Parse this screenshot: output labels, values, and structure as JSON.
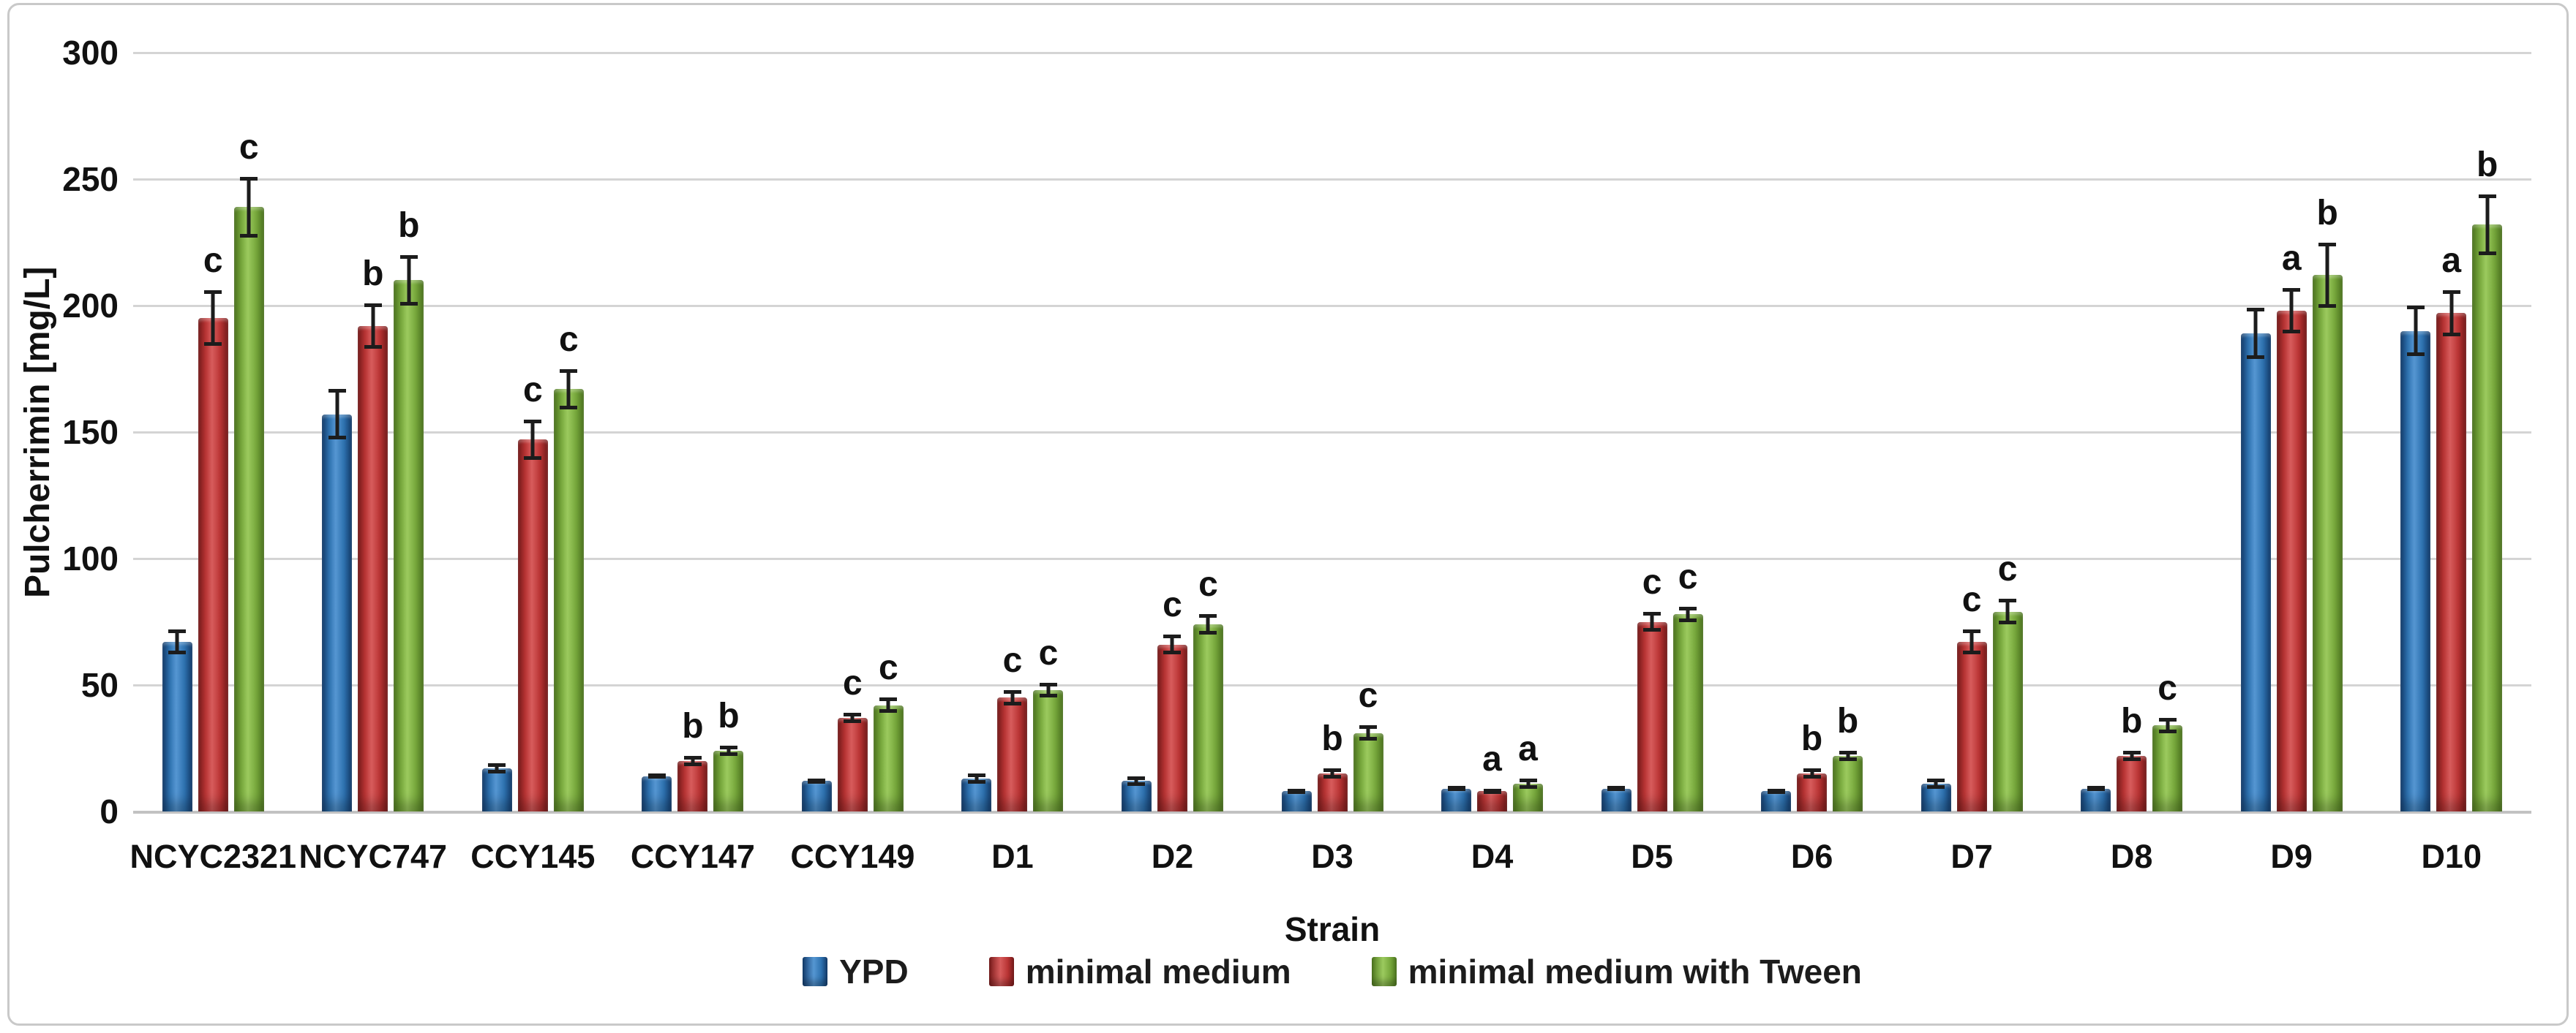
{
  "chart_data": {
    "type": "bar",
    "title": "",
    "xlabel": "Strain",
    "ylabel": "Pulcherrimin [mg/L]",
    "ylim": [
      0,
      300
    ],
    "ytick_labels": [
      "300",
      "250",
      "200",
      "150",
      "100",
      "50",
      "0"
    ],
    "grid": true,
    "legend_position": "bottom-center",
    "categories": [
      "NCYC2321",
      "NCYC747",
      "CCY145",
      "CCY147",
      "CCY149",
      "D1",
      "D2",
      "D3",
      "D4",
      "D5",
      "D6",
      "D7",
      "D8",
      "D9",
      "D10"
    ],
    "series": [
      {
        "name": "YPD",
        "color": "#2e72b0",
        "color_dark": "#143f72",
        "color_light": "#5596d2",
        "values": [
          67,
          157,
          17,
          14,
          12,
          13,
          12,
          8,
          9,
          9,
          8,
          11,
          9,
          189,
          190
        ],
        "errors": [
          5,
          10,
          2,
          1,
          1,
          2,
          2,
          1,
          1,
          1,
          1,
          2,
          1,
          10,
          10
        ],
        "letters": [
          "",
          "",
          "",
          "",
          "",
          "",
          "",
          "",
          "",
          "",
          "",
          "",
          "",
          "",
          ""
        ]
      },
      {
        "name": "minimal medium",
        "color": "#b93434",
        "color_dark": "#7e1c1c",
        "color_light": "#d75c5c",
        "values": [
          195,
          192,
          147,
          20,
          37,
          45,
          66,
          15,
          8,
          75,
          15,
          67,
          22,
          198,
          197
        ],
        "errors": [
          11,
          9,
          8,
          2,
          2,
          3,
          4,
          2,
          1,
          4,
          2,
          5,
          2,
          9,
          9
        ],
        "letters": [
          "c",
          "b",
          "c",
          "b",
          "c",
          "c",
          "c",
          "b",
          "a",
          "c",
          "b",
          "c",
          "b",
          "a",
          "a"
        ]
      },
      {
        "name": "minimal medium with Tween",
        "color": "#77a83c",
        "color_dark": "#527d21",
        "color_light": "#9bca5e",
        "values": [
          239,
          210,
          167,
          24,
          42,
          48,
          74,
          31,
          11,
          78,
          22,
          79,
          34,
          212,
          232
        ],
        "errors": [
          12,
          10,
          8,
          2,
          3,
          3,
          4,
          3,
          2,
          3,
          2,
          5,
          3,
          13,
          12
        ],
        "letters": [
          "c",
          "b",
          "c",
          "b",
          "c",
          "c",
          "c",
          "c",
          "a",
          "c",
          "b",
          "c",
          "c",
          "b",
          "b"
        ]
      }
    ]
  }
}
